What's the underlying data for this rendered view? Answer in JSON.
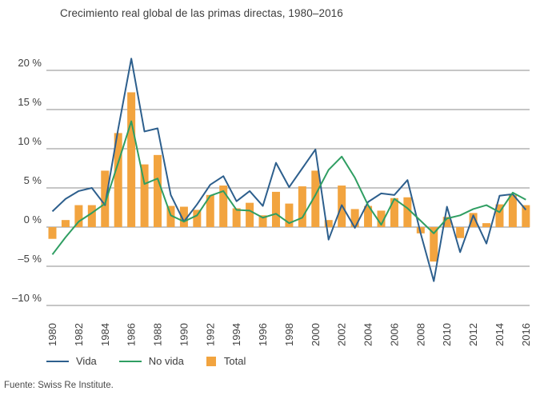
{
  "title": "Crecimiento real global de las primas directas, 1980–2016",
  "source": "Fuente: Swiss Re Institute.",
  "colors": {
    "bar": "#F2A43F",
    "vida_line": "#2D5F8D",
    "no_vida_line": "#2F9E62",
    "gridline": "#8C8C8C",
    "tick_text": "#3F3F3F"
  },
  "legend": [
    {
      "label": "Vida",
      "type": "line",
      "color": "#2D5F8D"
    },
    {
      "label": "No vida",
      "type": "line",
      "color": "#2F9E62"
    },
    {
      "label": "Total",
      "type": "square",
      "color": "#F2A43F"
    }
  ],
  "chart_data": {
    "type": "bar",
    "subtype": "combo-bar-line",
    "title": "Crecimiento real global de las primas directas, 1980–2016",
    "xlabel": "",
    "ylabel": "",
    "x": [
      1980,
      1981,
      1982,
      1983,
      1984,
      1985,
      1986,
      1987,
      1988,
      1989,
      1990,
      1991,
      1992,
      1993,
      1994,
      1995,
      1996,
      1997,
      1998,
      1999,
      2000,
      2001,
      2002,
      2003,
      2004,
      2005,
      2006,
      2007,
      2008,
      2009,
      2010,
      2011,
      2012,
      2013,
      2014,
      2015,
      2016
    ],
    "series": [
      {
        "name": "Vida",
        "type": "line",
        "color": "#2D5F8D",
        "values": [
          2.0,
          3.6,
          4.6,
          5.0,
          2.8,
          12.5,
          21.5,
          12.2,
          12.6,
          4.1,
          0.7,
          2.9,
          5.4,
          6.5,
          3.3,
          4.6,
          2.7,
          8.2,
          5.1,
          7.5,
          9.9,
          -1.6,
          2.8,
          -0.1,
          3.2,
          4.3,
          4.1,
          6.0,
          -0.8,
          -6.9,
          2.6,
          -3.2,
          1.5,
          -2.1,
          4.0,
          4.2,
          2.2
        ]
      },
      {
        "name": "No vida",
        "type": "line",
        "color": "#2F9E62",
        "values": [
          -3.5,
          -1.3,
          0.7,
          1.8,
          3.0,
          8.2,
          13.5,
          5.5,
          6.2,
          1.5,
          0.7,
          1.5,
          4.0,
          4.6,
          2.2,
          2.1,
          1.2,
          1.7,
          0.5,
          1.2,
          4.1,
          7.3,
          9.0,
          6.3,
          2.8,
          0.3,
          3.6,
          2.4,
          0.8,
          -0.8,
          1.1,
          1.5,
          2.3,
          2.8,
          1.9,
          4.4,
          3.5
        ]
      },
      {
        "name": "Total",
        "type": "bar",
        "color": "#F2A43F",
        "values": [
          -1.5,
          0.9,
          2.8,
          2.8,
          7.2,
          12.0,
          17.2,
          8.0,
          9.2,
          2.7,
          2.6,
          2.2,
          4.1,
          5.3,
          2.4,
          3.1,
          1.5,
          4.5,
          3.0,
          5.2,
          7.2,
          0.9,
          5.3,
          2.3,
          2.7,
          2.1,
          3.7,
          3.8,
          -0.8,
          -4.4,
          1.3,
          -1.4,
          1.8,
          0.5,
          2.9,
          4.1,
          2.8
        ]
      }
    ],
    "y_ticks": [
      {
        "v": 20,
        "label": "20 %"
      },
      {
        "v": 15,
        "label": "15 %"
      },
      {
        "v": 10,
        "label": "10 %"
      },
      {
        "v": 5,
        "label": "5 %"
      },
      {
        "v": 0,
        "label": "0 %"
      },
      {
        "v": -5,
        "label": "–5 %"
      },
      {
        "v": -10,
        "label": "–10 %"
      }
    ],
    "x_tick_years": [
      1980,
      1982,
      1984,
      1986,
      1988,
      1990,
      1992,
      1994,
      1996,
      1998,
      2000,
      2002,
      2004,
      2006,
      2008,
      2010,
      2012,
      2014,
      2016
    ],
    "ylim": [
      -12,
      22
    ],
    "grid": true,
    "legend_position": "bottom"
  }
}
